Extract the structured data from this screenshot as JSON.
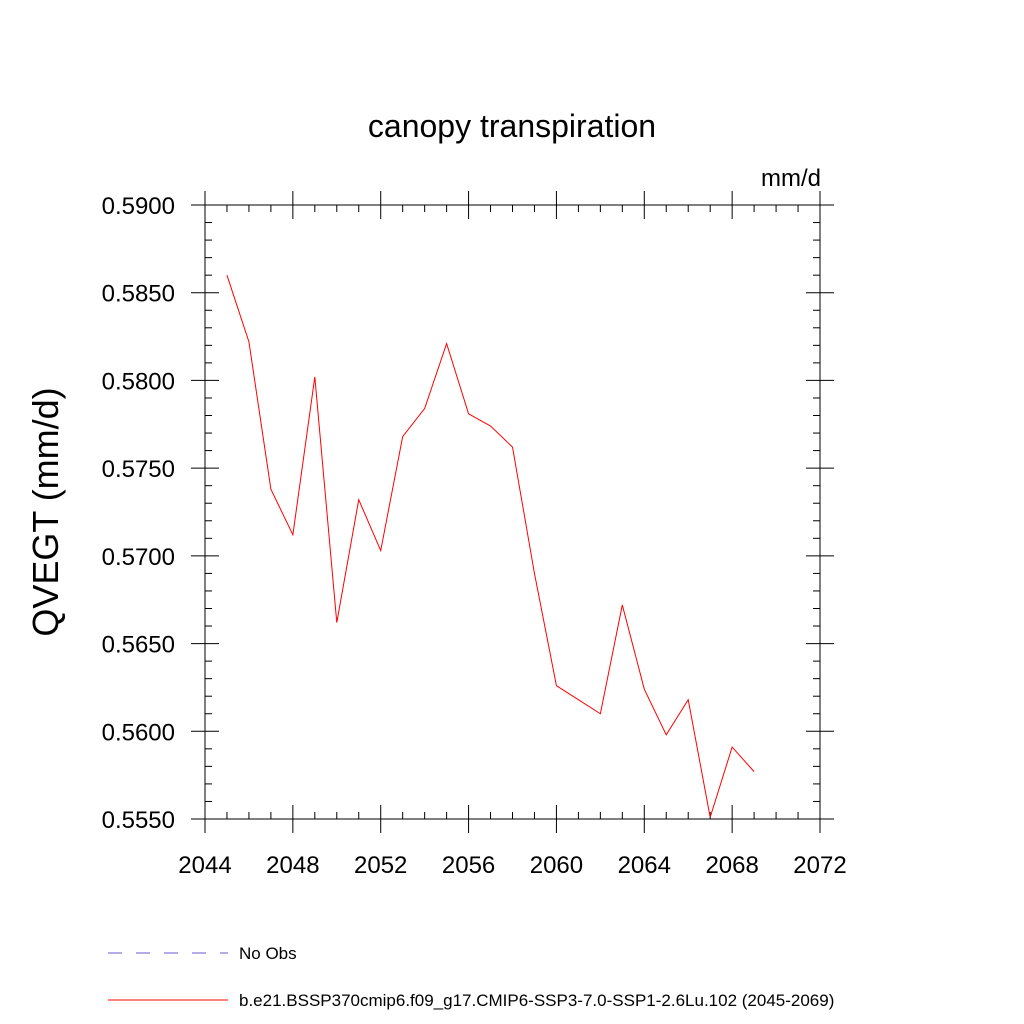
{
  "chart_data": {
    "type": "line",
    "title": "canopy transpiration",
    "units_label": "mm/d",
    "ylabel": "QVEGT  (mm/d)",
    "xlabel": "",
    "xlim": [
      2044,
      2072
    ],
    "ylim": [
      0.555,
      0.59
    ],
    "x_ticks": [
      2044,
      2048,
      2052,
      2056,
      2060,
      2064,
      2068,
      2072
    ],
    "x_tick_labels": [
      "2044",
      "2048",
      "2052",
      "2056",
      "2060",
      "2064",
      "2068",
      "2072"
    ],
    "y_ticks": [
      0.555,
      0.56,
      0.565,
      0.57,
      0.575,
      0.58,
      0.585,
      0.59
    ],
    "y_tick_labels": [
      "0.5550",
      "0.5600",
      "0.5650",
      "0.5700",
      "0.5750",
      "0.5800",
      "0.5850",
      "0.5900"
    ],
    "grid": false,
    "legend_placement": "bottom",
    "series": [
      {
        "name": "b.e21.BSSP370cmip6.f09_g17.CMIP6-SSP3-7.0-SSP1-2.6Lu.102 (2045-2069)",
        "color": "#ff0000",
        "style": "solid",
        "x": [
          2045,
          2046,
          2047,
          2048,
          2049,
          2050,
          2051,
          2052,
          2053,
          2054,
          2055,
          2056,
          2057,
          2058,
          2059,
          2060,
          2061,
          2062,
          2063,
          2064,
          2065,
          2066,
          2067,
          2068,
          2069
        ],
        "values": [
          0.586,
          0.5822,
          0.5738,
          0.5712,
          0.5802,
          0.5662,
          0.5732,
          0.5703,
          0.5768,
          0.5784,
          0.5821,
          0.5781,
          0.5774,
          0.5762,
          0.569,
          0.5626,
          0.5618,
          0.561,
          0.5672,
          0.5624,
          0.5598,
          0.5618,
          0.5551,
          0.5591,
          0.5577
        ]
      }
    ],
    "legend": [
      {
        "label": "No Obs",
        "color": "#6a5acd",
        "style": "dashed"
      },
      {
        "label": "b.e21.BSSP370cmip6.f09_g17.CMIP6-SSP3-7.0-SSP1-2.6Lu.102 (2045-2069)",
        "color": "#ff0000",
        "style": "solid"
      }
    ]
  }
}
